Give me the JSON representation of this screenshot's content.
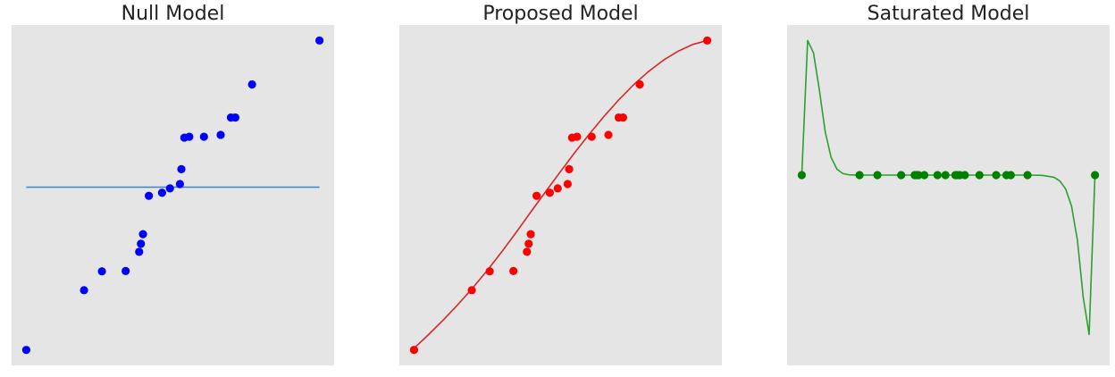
{
  "figure": {
    "background": "#ffffff",
    "axes_background": "#e5e5e5"
  },
  "chart_data": [
    {
      "type": "scatter",
      "title": "Null Model",
      "xlabel": "",
      "ylabel": "",
      "grid": false,
      "ticks": false,
      "xlim": [
        -0.05,
        1.05
      ],
      "ylim": [
        -0.05,
        1.05
      ],
      "points_color": "#0000ff",
      "line_color": "#3a84c5",
      "line_kind": "horizontal mean",
      "points": [
        {
          "x": 0.0,
          "y": 0.0
        },
        {
          "x": 0.197,
          "y": 0.193
        },
        {
          "x": 0.258,
          "y": 0.254
        },
        {
          "x": 0.339,
          "y": 0.255
        },
        {
          "x": 0.385,
          "y": 0.317
        },
        {
          "x": 0.391,
          "y": 0.343
        },
        {
          "x": 0.398,
          "y": 0.374
        },
        {
          "x": 0.418,
          "y": 0.498
        },
        {
          "x": 0.463,
          "y": 0.508
        },
        {
          "x": 0.49,
          "y": 0.522
        },
        {
          "x": 0.524,
          "y": 0.536
        },
        {
          "x": 0.529,
          "y": 0.584
        },
        {
          "x": 0.539,
          "y": 0.686
        },
        {
          "x": 0.556,
          "y": 0.689
        },
        {
          "x": 0.606,
          "y": 0.689
        },
        {
          "x": 0.663,
          "y": 0.695
        },
        {
          "x": 0.698,
          "y": 0.751
        },
        {
          "x": 0.713,
          "y": 0.751
        },
        {
          "x": 0.77,
          "y": 0.858
        },
        {
          "x": 1.0,
          "y": 1.0
        }
      ],
      "line": {
        "x": [
          0.0,
          1.0
        ],
        "y": [
          0.526,
          0.526
        ]
      }
    },
    {
      "type": "scatter",
      "title": "Proposed Model",
      "xlabel": "",
      "ylabel": "",
      "grid": false,
      "ticks": false,
      "xlim": [
        -0.05,
        1.05
      ],
      "ylim": [
        -0.05,
        1.05
      ],
      "points_color": "#ff0000",
      "line_color": "#d62728",
      "line_kind": "smooth sigmoid fit",
      "points": [
        {
          "x": 0.0,
          "y": 0.0
        },
        {
          "x": 0.197,
          "y": 0.193
        },
        {
          "x": 0.258,
          "y": 0.254
        },
        {
          "x": 0.339,
          "y": 0.255
        },
        {
          "x": 0.385,
          "y": 0.317
        },
        {
          "x": 0.391,
          "y": 0.343
        },
        {
          "x": 0.398,
          "y": 0.374
        },
        {
          "x": 0.418,
          "y": 0.498
        },
        {
          "x": 0.463,
          "y": 0.508
        },
        {
          "x": 0.49,
          "y": 0.522
        },
        {
          "x": 0.524,
          "y": 0.536
        },
        {
          "x": 0.529,
          "y": 0.584
        },
        {
          "x": 0.539,
          "y": 0.686
        },
        {
          "x": 0.556,
          "y": 0.689
        },
        {
          "x": 0.606,
          "y": 0.689
        },
        {
          "x": 0.663,
          "y": 0.695
        },
        {
          "x": 0.698,
          "y": 0.751
        },
        {
          "x": 0.713,
          "y": 0.751
        },
        {
          "x": 0.77,
          "y": 0.858
        },
        {
          "x": 1.0,
          "y": 1.0
        }
      ],
      "line": {
        "x": [
          0.0,
          0.05,
          0.1,
          0.15,
          0.2,
          0.25,
          0.3,
          0.35,
          0.4,
          0.45,
          0.5,
          0.55,
          0.6,
          0.65,
          0.7,
          0.75,
          0.8,
          0.85,
          0.9,
          0.95,
          1.0
        ],
        "y": [
          0.005,
          0.05,
          0.097,
          0.147,
          0.2,
          0.257,
          0.318,
          0.382,
          0.448,
          0.513,
          0.577,
          0.64,
          0.7,
          0.757,
          0.81,
          0.858,
          0.9,
          0.936,
          0.965,
          0.987,
          1.0
        ]
      }
    },
    {
      "type": "line",
      "title": "Saturated Model",
      "xlabel": "",
      "ylabel": "",
      "grid": false,
      "ticks": false,
      "xlim": [
        -0.05,
        1.05
      ],
      "ylim": [
        -0.05,
        1.05
      ],
      "points_color": "#008000",
      "line_color": "#2ca02c",
      "line_kind": "interpolating polynomial",
      "points": [
        {
          "x": 0.0,
          "y": 0.565
        },
        {
          "x": 0.197,
          "y": 0.565
        },
        {
          "x": 0.258,
          "y": 0.565
        },
        {
          "x": 0.339,
          "y": 0.565
        },
        {
          "x": 0.385,
          "y": 0.565
        },
        {
          "x": 0.391,
          "y": 0.565
        },
        {
          "x": 0.398,
          "y": 0.565
        },
        {
          "x": 0.418,
          "y": 0.565
        },
        {
          "x": 0.463,
          "y": 0.565
        },
        {
          "x": 0.49,
          "y": 0.565
        },
        {
          "x": 0.524,
          "y": 0.565
        },
        {
          "x": 0.529,
          "y": 0.565
        },
        {
          "x": 0.539,
          "y": 0.565
        },
        {
          "x": 0.556,
          "y": 0.565
        },
        {
          "x": 0.606,
          "y": 0.565
        },
        {
          "x": 0.663,
          "y": 0.565
        },
        {
          "x": 0.698,
          "y": 0.565
        },
        {
          "x": 0.713,
          "y": 0.565
        },
        {
          "x": 0.77,
          "y": 0.565
        },
        {
          "x": 1.0,
          "y": 0.565
        }
      ],
      "line": {
        "x": [
          0.0,
          0.02,
          0.04,
          0.06,
          0.08,
          0.1,
          0.12,
          0.14,
          0.16,
          0.2,
          0.3,
          0.4,
          0.5,
          0.6,
          0.7,
          0.78,
          0.82,
          0.86,
          0.88,
          0.9,
          0.92,
          0.94,
          0.96,
          0.98,
          1.0
        ],
        "y": [
          0.565,
          1.0,
          0.96,
          0.84,
          0.705,
          0.622,
          0.584,
          0.57,
          0.566,
          0.565,
          0.565,
          0.565,
          0.565,
          0.565,
          0.565,
          0.565,
          0.564,
          0.558,
          0.546,
          0.52,
          0.465,
          0.355,
          0.17,
          0.05,
          0.565
        ]
      }
    }
  ]
}
